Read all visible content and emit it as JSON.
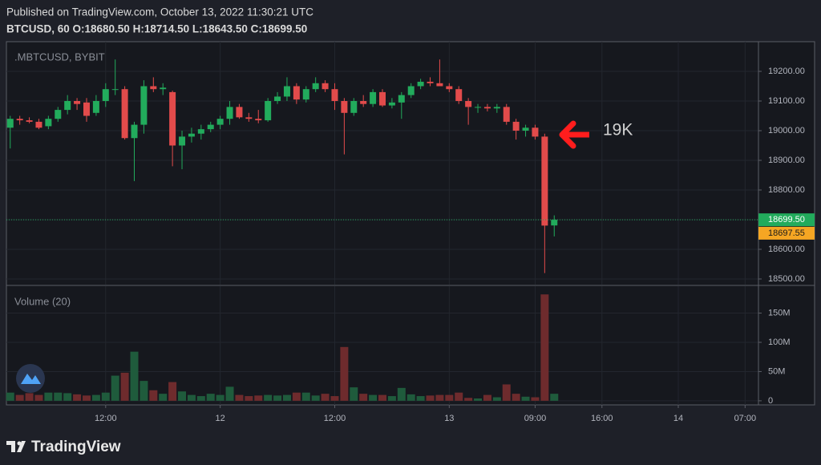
{
  "header": {
    "published": "Published on TradingView.com, October 13, 2022 11:30:21 UTC",
    "ohlc": "BTCUSD, 60 O:18680.50 H:18714.50 L:18643.50 C:18699.50"
  },
  "logo": "TradingView",
  "chart_data": [
    {
      "type": "candlestick",
      "title": ".MBTCUSD, BYBIT",
      "x": [
        2,
        3,
        4,
        5,
        6,
        7,
        8,
        9,
        10,
        11,
        12,
        13,
        14,
        15,
        16,
        17,
        18,
        19,
        20,
        21,
        22,
        23,
        24,
        25,
        26,
        27,
        28,
        29,
        30,
        31,
        32,
        33,
        34,
        35,
        36,
        37,
        38,
        39,
        40,
        41,
        42,
        43,
        44,
        45,
        46,
        47,
        48,
        49,
        50,
        51,
        52,
        53,
        54,
        55,
        56,
        57,
        58,
        59
      ],
      "open": [
        19010,
        19040,
        19035,
        19030,
        19015,
        19040,
        19070,
        19100,
        19095,
        19060,
        19100,
        19140,
        19140,
        18975,
        19020,
        19150,
        19140,
        19130,
        18950,
        18980,
        18990,
        19005,
        19020,
        19040,
        19080,
        19045,
        19040,
        19035,
        19100,
        19115,
        19150,
        19105,
        19140,
        19160,
        19140,
        19100,
        19060,
        19100,
        19090,
        19130,
        19085,
        19095,
        19120,
        19150,
        19165,
        19160,
        19150,
        19140,
        19100,
        19080,
        19080,
        19075,
        19080,
        19030,
        19000,
        19010,
        18980,
        18680.5
      ],
      "high": [
        19050,
        19050,
        19045,
        19040,
        19050,
        19080,
        19120,
        19110,
        19110,
        19120,
        19160,
        19240,
        19150,
        19030,
        19170,
        19180,
        19160,
        19135,
        19000,
        19010,
        19020,
        19030,
        19050,
        19100,
        19090,
        19060,
        19070,
        19110,
        19130,
        19180,
        19160,
        19150,
        19180,
        19170,
        19160,
        19110,
        19110,
        19120,
        19140,
        19140,
        19110,
        19130,
        19160,
        19175,
        19180,
        19240,
        19160,
        19150,
        19110,
        19090,
        19090,
        19090,
        19090,
        19040,
        19020,
        19020,
        18990,
        18714.5
      ],
      "low": [
        18940,
        19020,
        19025,
        19005,
        19005,
        19030,
        19055,
        19070,
        19030,
        19050,
        19080,
        19120,
        18970,
        18830,
        18990,
        19130,
        19120,
        18880,
        18870,
        18960,
        18970,
        18995,
        19005,
        19020,
        19040,
        19030,
        19025,
        19030,
        19090,
        19100,
        19090,
        19095,
        19130,
        19130,
        19070,
        18920,
        19050,
        19080,
        19080,
        19080,
        19075,
        19040,
        19110,
        19140,
        19150,
        19150,
        19130,
        19090,
        19020,
        19060,
        19065,
        19060,
        19020,
        18970,
        18980,
        18970,
        18520,
        18643.5
      ],
      "close": [
        19040,
        19035,
        19030,
        19010,
        19040,
        19070,
        19100,
        19090,
        19050,
        19100,
        19140,
        19140,
        18975,
        19020,
        19150,
        19140,
        19145,
        18950,
        18980,
        18990,
        19005,
        19020,
        19040,
        19080,
        19045,
        19040,
        19035,
        19100,
        19115,
        19150,
        19105,
        19140,
        19160,
        19140,
        19100,
        19060,
        19100,
        19090,
        19130,
        19085,
        19095,
        19120,
        19150,
        19165,
        19160,
        19150,
        19140,
        19100,
        19080,
        19080,
        19075,
        19080,
        19030,
        19000,
        19010,
        18980,
        18680,
        18699.5
      ],
      "up_color": "#22ab5c",
      "down_color": "#e24b4b",
      "xlim": [
        1.6,
        80.4
      ],
      "ylim": [
        18481,
        19300
      ],
      "yticks": [
        {
          "value": 18500,
          "label": "18500.00"
        },
        {
          "value": 18600,
          "label": "18600.00"
        },
        {
          "value": 18700,
          "label": "18700.00"
        },
        {
          "value": 18800,
          "label": "18800.00"
        },
        {
          "value": 18900,
          "label": "18900.00"
        },
        {
          "value": 19000,
          "label": "19000.00"
        },
        {
          "value": 19100,
          "label": "19100.00"
        },
        {
          "value": 19200,
          "label": "19200.00"
        }
      ],
      "grid": true,
      "last_price": {
        "value": 18699.5,
        "label": "18699.50",
        "color": "#22ab5c"
      },
      "ma_price": {
        "value": 18697.55,
        "label": "18697.55",
        "color": "#f5a623"
      },
      "annotation": "19K"
    },
    {
      "type": "bar",
      "title": "Volume (20)",
      "x": [
        2,
        3,
        4,
        5,
        6,
        7,
        8,
        9,
        10,
        11,
        12,
        13,
        14,
        15,
        16,
        17,
        18,
        19,
        20,
        21,
        22,
        23,
        24,
        25,
        26,
        27,
        28,
        29,
        30,
        31,
        32,
        33,
        34,
        35,
        36,
        37,
        38,
        39,
        40,
        41,
        42,
        43,
        44,
        45,
        46,
        47,
        48,
        49,
        50,
        51,
        52,
        53,
        54,
        55,
        56,
        57,
        58,
        59
      ],
      "values": [
        14000000,
        10000000,
        13000000,
        10000000,
        14000000,
        14000000,
        13000000,
        11000000,
        9000000,
        10000000,
        14000000,
        43000000,
        48000000,
        84000000,
        34000000,
        18000000,
        12000000,
        32000000,
        16000000,
        10000000,
        8000000,
        12000000,
        10000000,
        24000000,
        10000000,
        8000000,
        9000000,
        10000000,
        9000000,
        10000000,
        14000000,
        14000000,
        9000000,
        12000000,
        8000000,
        92000000,
        23000000,
        12000000,
        10000000,
        10000000,
        8000000,
        22000000,
        11000000,
        8000000,
        9000000,
        10000000,
        10000000,
        14000000,
        5000000,
        4000000,
        10000000,
        6000000,
        28000000,
        12000000,
        7000000,
        6000000,
        182000000,
        12000000
      ],
      "up_color": "#1f5b3c",
      "down_color": "#6e2b2d",
      "xlim": [
        1.6,
        80.4
      ],
      "ylim": [
        -7000000,
        196000000
      ],
      "yticks": [
        0,
        {
          "value": 50000000,
          "label": "50M"
        },
        {
          "value": 100000000,
          "label": "100M"
        },
        {
          "value": 150000000,
          "label": "150M"
        }
      ],
      "xticks": [
        {
          "value": 12,
          "label": "12:00"
        },
        {
          "value": 24,
          "label": "12"
        },
        {
          "value": 36,
          "label": "12:00"
        },
        {
          "value": 48,
          "label": "13"
        },
        {
          "value": 57,
          "label": "09:00"
        },
        {
          "value": 64,
          "label": "16:00"
        },
        {
          "value": 72,
          "label": "14"
        },
        {
          "value": 79,
          "label": "07:00"
        }
      ],
      "grid": true
    }
  ]
}
